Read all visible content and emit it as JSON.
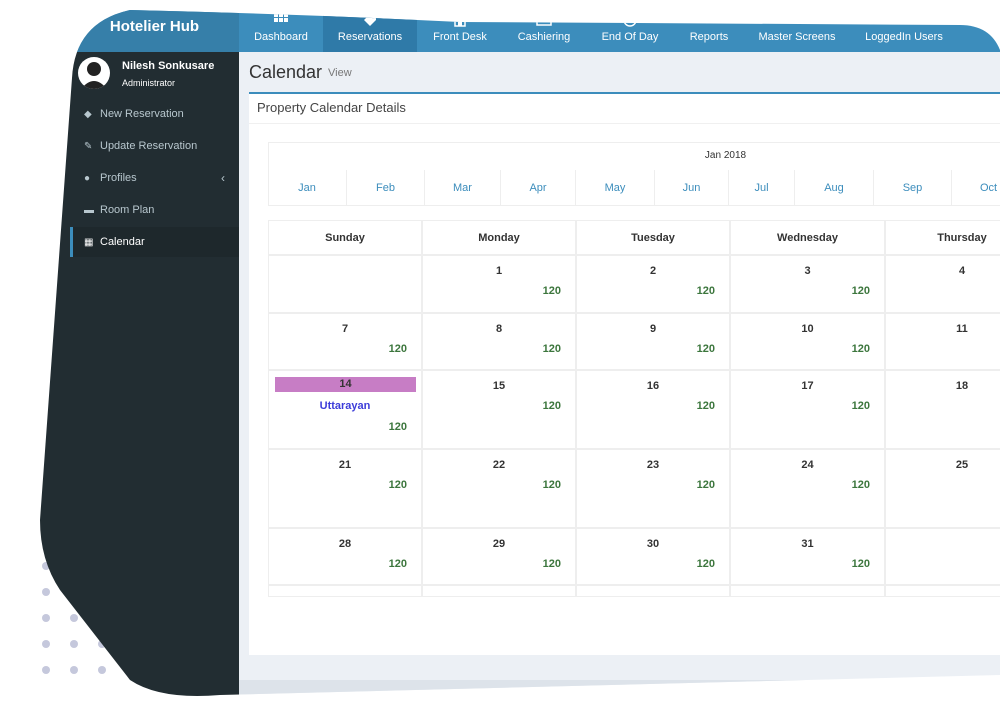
{
  "app": {
    "brand": "Hotelier Hub"
  },
  "user": {
    "name": "Nilesh Sonkusare",
    "role": "Administrator"
  },
  "topnav": [
    {
      "label": "Dashboard",
      "icon": "grid-icon"
    },
    {
      "label": "Reservations",
      "icon": "tag-icon",
      "active": true
    },
    {
      "label": "Front Desk",
      "icon": "building-icon"
    },
    {
      "label": "Cashiering",
      "icon": "cash-icon"
    },
    {
      "label": "End Of Day",
      "icon": "clock-icon"
    },
    {
      "label": "Reports",
      "icon": "report-icon"
    },
    {
      "label": "Master Screens",
      "icon": "screen-icon"
    },
    {
      "label": "LoggedIn Users",
      "icon": "users-icon"
    }
  ],
  "sidebar": {
    "items": [
      {
        "label": "New Reservation",
        "icon": "tag-icon"
      },
      {
        "label": "Update Reservation",
        "icon": "edit-icon"
      },
      {
        "label": "Profiles",
        "icon": "user-icon"
      },
      {
        "label": "Room Plan",
        "icon": "bed-icon"
      },
      {
        "label": "Calendar",
        "icon": "calendar-icon",
        "active": true
      }
    ]
  },
  "page": {
    "title": "Calendar",
    "subtitle": "View"
  },
  "box": {
    "title": "Property Calendar Details"
  },
  "calendar": {
    "current": "Jan 2018",
    "months": [
      "Jan",
      "Feb",
      "Mar",
      "Apr",
      "May",
      "Jun",
      "Jul",
      "Aug",
      "Sep",
      "Oct"
    ],
    "days": [
      "Sunday",
      "Monday",
      "Tuesday",
      "Wednesday",
      "Thursday"
    ],
    "weeks": [
      [
        {
          "day": "",
          "count": ""
        },
        {
          "day": "1",
          "count": "120"
        },
        {
          "day": "2",
          "count": "120"
        },
        {
          "day": "3",
          "count": "120"
        },
        {
          "day": "4",
          "count": ""
        }
      ],
      [
        {
          "day": "7",
          "count": "120"
        },
        {
          "day": "8",
          "count": "120"
        },
        {
          "day": "9",
          "count": "120"
        },
        {
          "day": "10",
          "count": "120"
        },
        {
          "day": "11",
          "count": ""
        }
      ],
      [
        {
          "day": "14",
          "count": "120",
          "highlight": true,
          "event": "Uttarayan"
        },
        {
          "day": "15",
          "count": "120"
        },
        {
          "day": "16",
          "count": "120"
        },
        {
          "day": "17",
          "count": "120"
        },
        {
          "day": "18",
          "count": ""
        }
      ],
      [
        {
          "day": "21",
          "count": "120"
        },
        {
          "day": "22",
          "count": "120"
        },
        {
          "day": "23",
          "count": "120"
        },
        {
          "day": "24",
          "count": "120"
        },
        {
          "day": "25",
          "count": ""
        }
      ],
      [
        {
          "day": "28",
          "count": "120"
        },
        {
          "day": "29",
          "count": "120"
        },
        {
          "day": "30",
          "count": "120"
        },
        {
          "day": "31",
          "count": "120"
        },
        {
          "day": "",
          "count": ""
        }
      ]
    ],
    "highlight_color": "#c77dc5",
    "count_color": "#3c763d",
    "event_color": "#3c3cd9"
  },
  "colors": {
    "header": "#3c8dbc",
    "sidebar": "#222d32",
    "accent": "#3c8dbc"
  }
}
